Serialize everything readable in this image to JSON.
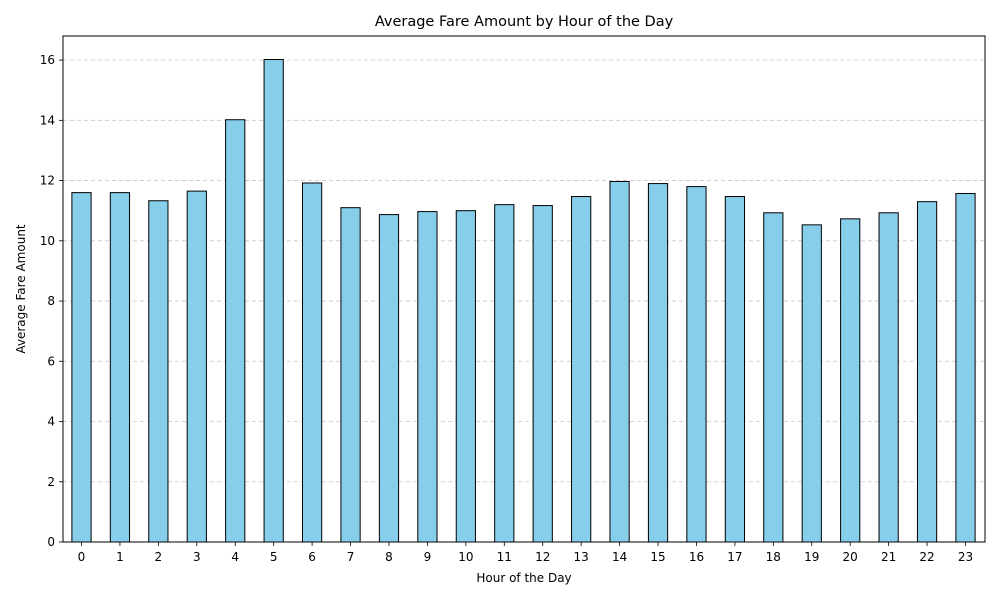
{
  "chart_data": {
    "type": "bar",
    "title": "Average Fare Amount by Hour of the Day",
    "xlabel": "Hour of the Day",
    "ylabel": "Average Fare Amount",
    "categories": [
      "0",
      "1",
      "2",
      "3",
      "4",
      "5",
      "6",
      "7",
      "8",
      "9",
      "10",
      "11",
      "12",
      "13",
      "14",
      "15",
      "16",
      "17",
      "18",
      "19",
      "20",
      "21",
      "22",
      "23"
    ],
    "values": [
      11.6,
      11.6,
      11.33,
      11.65,
      14.02,
      16.02,
      11.92,
      11.1,
      10.87,
      10.97,
      11.0,
      11.2,
      11.17,
      11.47,
      11.97,
      11.9,
      11.8,
      11.47,
      10.93,
      10.53,
      10.73,
      10.93,
      11.3,
      11.57
    ],
    "yticks": [
      0,
      2,
      4,
      6,
      8,
      10,
      12,
      14,
      16
    ],
    "ylim": [
      0,
      16.8
    ],
    "grid": "y-dashed",
    "legend": "none",
    "colors": {
      "bar_fill": "#87ceeb",
      "bar_edge": "#000000",
      "grid": "#c8c8c8"
    }
  }
}
